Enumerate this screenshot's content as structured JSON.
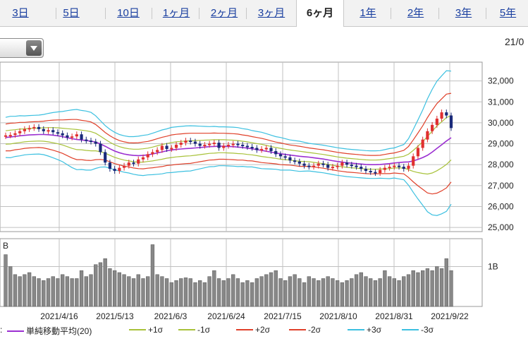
{
  "tabs": [
    {
      "label": "3日",
      "active": false
    },
    {
      "label": "5日",
      "active": false
    },
    {
      "label": "10日",
      "active": false
    },
    {
      "label": "1ヶ月",
      "active": false
    },
    {
      "label": "2ヶ月",
      "active": false
    },
    {
      "label": "3ヶ月",
      "active": false
    },
    {
      "label": "6ヶ月",
      "active": true
    },
    {
      "label": "1年",
      "active": false
    },
    {
      "label": "2年",
      "active": false
    },
    {
      "label": "3年",
      "active": false
    },
    {
      "label": "5年",
      "active": false
    }
  ],
  "header": {
    "date_label": "21/0"
  },
  "chart_data": {
    "type": "line",
    "price_axis": {
      "ylim": [
        24800,
        32900
      ],
      "ticks": [
        "25,000",
        "26,000",
        "27,000",
        "28,000",
        "29,000",
        "30,000",
        "31,000",
        "32,000"
      ]
    },
    "volume_axis": {
      "labels_left": "B",
      "labels_right": "1B"
    },
    "x_ticks": [
      "2021/4/16",
      "2021/5/13",
      "2021/6/3",
      "2021/6/24",
      "2021/7/15",
      "2021/8/10",
      "2021/8/31",
      "2021/9/22"
    ],
    "legend": [
      {
        "label": "単純移動平均(20)",
        "color": "#9b2fd1"
      },
      {
        "label": "+1σ",
        "color": "#a8c23a"
      },
      {
        "label": "-1σ",
        "color": "#a8c23a"
      },
      {
        "label": "+2σ",
        "color": "#e0402a"
      },
      {
        "label": "-2σ",
        "color": "#e0402a"
      },
      {
        "label": "+3σ",
        "color": "#3cc0e0"
      },
      {
        "label": "-3σ",
        "color": "#3cc0e0"
      }
    ],
    "colors": {
      "up": "#e03030",
      "down": "#1a2a7a",
      "volume": "#888888",
      "grid": "#c0c0c0"
    },
    "series": [
      {
        "name": "単純移動平均(20)",
        "values": [
          29300,
          29320,
          29350,
          29380,
          29400,
          29420,
          29430,
          29440,
          29440,
          29430,
          29410,
          29380,
          29340,
          29290,
          29240,
          29200,
          29180,
          29150,
          29120,
          29080,
          28990,
          28880,
          28760,
          28650,
          28570,
          28510,
          28470,
          28440,
          28430,
          28440,
          28470,
          28510,
          28560,
          28610,
          28660,
          28700,
          28730,
          28750,
          28770,
          28780,
          28800,
          28820,
          28840,
          28860,
          28870,
          28880,
          28880,
          28870,
          28860,
          28840,
          28820,
          28790,
          28760,
          28720,
          28680,
          28640,
          28600,
          28560,
          28520,
          28490,
          28460,
          28430,
          28400,
          28380,
          28360,
          28330,
          28300,
          28270,
          28230,
          28190,
          28150,
          28120,
          28090,
          28070,
          28050,
          28030,
          28010,
          28000,
          28000,
          28010,
          28030,
          28050,
          28080,
          28100,
          28120,
          28130,
          28180,
          28250,
          28340,
          28450,
          28600,
          28780,
          28950,
          29130,
          29290
        ]
      },
      {
        "name": "+1σ",
        "values": [
          29620,
          29650,
          29670,
          29700,
          29710,
          29730,
          29740,
          29750,
          29760,
          29770,
          29770,
          29760,
          29740,
          29720,
          29700,
          29680,
          29650,
          29620,
          29580,
          29500,
          29360,
          29210,
          29070,
          28950,
          28860,
          28800,
          28760,
          28740,
          28740,
          28760,
          28790,
          28840,
          28900,
          28960,
          29010,
          29060,
          29090,
          29110,
          29130,
          29140,
          29150,
          29160,
          29170,
          29180,
          29190,
          29190,
          29190,
          29180,
          29170,
          29150,
          29120,
          29090,
          29050,
          29010,
          28970,
          28920,
          28870,
          28820,
          28780,
          28740,
          28700,
          28670,
          28640,
          28610,
          28580,
          28550,
          28520,
          28490,
          28450,
          28410,
          28370,
          28340,
          28310,
          28290,
          28270,
          28250,
          28230,
          28220,
          28220,
          28230,
          28260,
          28290,
          28320,
          28360,
          28400,
          28500,
          28680,
          28880,
          29100,
          29350,
          29600,
          29850,
          30050,
          30250,
          30350
        ]
      },
      {
        "name": "-1σ",
        "values": [
          28980,
          28990,
          29030,
          29060,
          29090,
          29110,
          29120,
          29130,
          29120,
          29090,
          29050,
          29000,
          28940,
          28860,
          28780,
          28720,
          28710,
          28680,
          28660,
          28660,
          28620,
          28550,
          28450,
          28350,
          28280,
          28220,
          28180,
          28140,
          28120,
          28120,
          28150,
          28180,
          28220,
          28260,
          28310,
          28340,
          28370,
          28390,
          28410,
          28420,
          28450,
          28480,
          28510,
          28540,
          28550,
          28570,
          28570,
          28560,
          28550,
          28530,
          28520,
          28490,
          28470,
          28430,
          28390,
          28360,
          28330,
          28300,
          28260,
          28240,
          28220,
          28190,
          28160,
          28150,
          28140,
          28110,
          28080,
          28050,
          28010,
          27970,
          27930,
          27900,
          27870,
          27850,
          27830,
          27810,
          27790,
          27780,
          27780,
          27790,
          27800,
          27810,
          27840,
          27840,
          27840,
          27760,
          27680,
          27620,
          27580,
          27550,
          27600,
          27710,
          27850,
          28010,
          28230
        ]
      },
      {
        "name": "+2σ",
        "values": [
          29940,
          29980,
          29990,
          30020,
          30020,
          30040,
          30050,
          30060,
          30080,
          30110,
          30130,
          30140,
          30140,
          30150,
          30160,
          30160,
          30120,
          30090,
          30040,
          29920,
          29730,
          29540,
          29380,
          29250,
          29150,
          29090,
          29050,
          29040,
          29050,
          29080,
          29110,
          29170,
          29240,
          29310,
          29360,
          29420,
          29450,
          29470,
          29490,
          29500,
          29500,
          29500,
          29500,
          29500,
          29510,
          29500,
          29500,
          29490,
          29480,
          29460,
          29420,
          29390,
          29340,
          29300,
          29260,
          29200,
          29140,
          29080,
          29040,
          28990,
          28940,
          28910,
          28880,
          28840,
          28800,
          28770,
          28740,
          28710,
          28670,
          28630,
          28590,
          28560,
          28530,
          28510,
          28490,
          28470,
          28450,
          28440,
          28440,
          28450,
          28490,
          28530,
          28560,
          28620,
          28680,
          28870,
          29180,
          29510,
          29860,
          30250,
          30600,
          30920,
          31150,
          31370,
          31410
        ]
      },
      {
        "name": "-2σ",
        "values": [
          28660,
          28660,
          28710,
          28740,
          28780,
          28800,
          28810,
          28820,
          28800,
          28750,
          28690,
          28620,
          28540,
          28430,
          28320,
          28240,
          28240,
          28210,
          28200,
          28240,
          28250,
          28220,
          28140,
          28050,
          27990,
          27930,
          27890,
          27840,
          27810,
          27800,
          27830,
          27850,
          27880,
          27910,
          27960,
          27980,
          28010,
          28030,
          28050,
          28060,
          28100,
          28140,
          28180,
          28220,
          28230,
          28260,
          28260,
          28250,
          28240,
          28220,
          28220,
          28190,
          28180,
          28140,
          28100,
          28080,
          28060,
          28040,
          28000,
          27990,
          27980,
          27950,
          27920,
          27920,
          27920,
          27890,
          27860,
          27830,
          27790,
          27750,
          27710,
          27680,
          27650,
          27630,
          27610,
          27590,
          27570,
          27560,
          27560,
          27570,
          27570,
          27570,
          27600,
          27580,
          27560,
          27390,
          27180,
          26990,
          26820,
          26650,
          26600,
          26640,
          26750,
          26890,
          27170
        ]
      },
      {
        "name": "+3σ",
        "values": [
          30260,
          30310,
          30310,
          30340,
          30330,
          30350,
          30360,
          30370,
          30400,
          30450,
          30490,
          30520,
          30540,
          30580,
          30620,
          30640,
          30590,
          30560,
          30500,
          30340,
          30100,
          29870,
          29690,
          29550,
          29440,
          29380,
          29340,
          29340,
          29360,
          29400,
          29430,
          29500,
          29580,
          29660,
          29710,
          29780,
          29810,
          29830,
          29850,
          29860,
          29850,
          29840,
          29830,
          29820,
          29830,
          29810,
          29810,
          29800,
          29790,
          29770,
          29720,
          29690,
          29630,
          29590,
          29550,
          29480,
          29410,
          29340,
          29300,
          29240,
          29180,
          29150,
          29120,
          29070,
          29020,
          28990,
          28960,
          28930,
          28890,
          28850,
          28810,
          28780,
          28750,
          28730,
          28710,
          28690,
          28670,
          28660,
          28660,
          28670,
          28720,
          28770,
          28800,
          28880,
          28960,
          29240,
          29680,
          30140,
          30620,
          31150,
          31600,
          31990,
          32250,
          32490,
          32470
        ]
      },
      {
        "name": "-3σ",
        "values": [
          28340,
          28330,
          28390,
          28420,
          28470,
          28490,
          28500,
          28510,
          28480,
          28410,
          28330,
          28240,
          28140,
          28000,
          27860,
          27760,
          27770,
          27740,
          27740,
          27820,
          27880,
          27890,
          27830,
          27750,
          27700,
          27640,
          27600,
          27540,
          27500,
          27480,
          27510,
          27520,
          27540,
          27560,
          27610,
          27620,
          27650,
          27670,
          27690,
          27700,
          27750,
          27800,
          27850,
          27900,
          27910,
          27950,
          27950,
          27940,
          27930,
          27910,
          27920,
          27890,
          27890,
          27850,
          27810,
          27800,
          27790,
          27780,
          27740,
          27740,
          27740,
          27710,
          27680,
          27690,
          27700,
          27670,
          27640,
          27610,
          27570,
          27530,
          27490,
          27460,
          27430,
          27410,
          27390,
          27370,
          27350,
          27340,
          27340,
          27350,
          27340,
          27330,
          27360,
          27320,
          27280,
          27020,
          26680,
          26360,
          26060,
          25750,
          25600,
          25570,
          25650,
          25770,
          26110
        ]
      }
    ],
    "closes": [
      29400,
      29420,
      29500,
      29600,
      29700,
      29750,
      29800,
      29700,
      29600,
      29650,
      29550,
      29500,
      29400,
      29300,
      29350,
      29450,
      29200,
      29150,
      29100,
      29000,
      28600,
      28100,
      27800,
      27700,
      27850,
      27950,
      28100,
      28050,
      28250,
      28350,
      28500,
      28600,
      28700,
      28900,
      28750,
      28800,
      28950,
      29050,
      29150,
      29100,
      29000,
      28900,
      28950,
      29000,
      29050,
      28800,
      28900,
      28950,
      29000,
      28950,
      28900,
      28850,
      28800,
      28700,
      28750,
      28800,
      28650,
      28500,
      28400,
      28350,
      28200,
      28150,
      28050,
      27950,
      27900,
      27950,
      28050,
      28000,
      27850,
      27900,
      27950,
      28100,
      28000,
      27950,
      27900,
      27800,
      27700,
      27650,
      27600,
      27750,
      27850,
      27900,
      27950,
      27900,
      27800,
      27950,
      28400,
      28800,
      29200,
      29600,
      29900,
      30200,
      30500,
      30350,
      29750
    ],
    "volume": [
      1.3,
      1.0,
      0.8,
      0.75,
      0.8,
      0.85,
      0.75,
      0.7,
      0.65,
      0.7,
      0.75,
      0.7,
      0.8,
      0.75,
      0.7,
      0.7,
      0.9,
      0.75,
      0.8,
      1.05,
      1.1,
      1.2,
      0.95,
      0.9,
      0.85,
      0.8,
      0.75,
      0.7,
      0.8,
      0.7,
      0.75,
      1.55,
      0.8,
      0.75,
      0.7,
      0.6,
      0.65,
      0.7,
      0.72,
      0.7,
      0.6,
      0.65,
      0.6,
      0.75,
      0.9,
      0.7,
      0.65,
      0.7,
      0.8,
      0.7,
      0.6,
      0.65,
      0.6,
      0.7,
      0.75,
      0.8,
      0.85,
      0.9,
      0.7,
      0.65,
      0.75,
      0.8,
      0.7,
      0.6,
      0.75,
      0.7,
      0.65,
      0.7,
      0.75,
      0.7,
      0.65,
      0.6,
      0.65,
      0.7,
      0.8,
      0.85,
      0.75,
      0.7,
      0.65,
      0.7,
      0.9,
      0.75,
      0.7,
      0.65,
      0.75,
      0.8,
      0.9,
      0.85,
      0.9,
      0.95,
      0.9,
      1.0,
      0.95,
      1.2,
      0.9
    ]
  }
}
